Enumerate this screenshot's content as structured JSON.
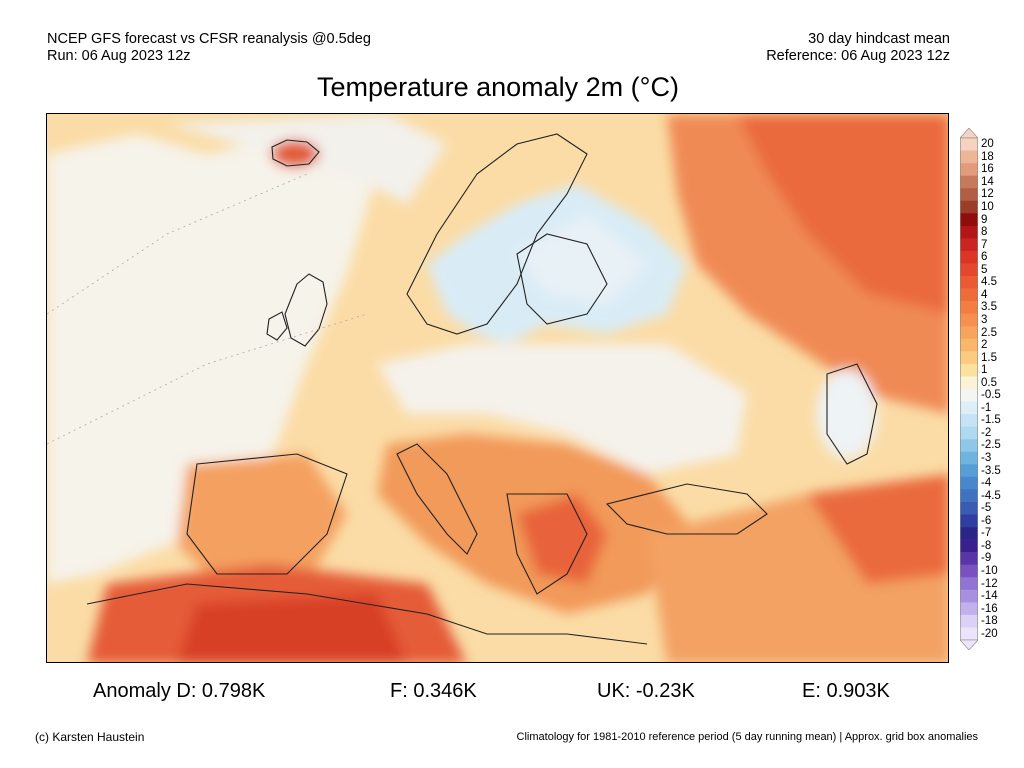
{
  "header": {
    "left_line1": "NCEP GFS forecast vs CFSR reanalysis @0.5deg",
    "left_line2": "Run: 06 Aug 2023 12z",
    "right_line1": "30 day hindcast mean",
    "right_line2": "Reference: 06 Aug 2023 12z"
  },
  "title": "Temperature anomaly 2m (°C)",
  "colorbar": {
    "labels": [
      "20",
      "18",
      "16",
      "14",
      "12",
      "10",
      "9",
      "8",
      "7",
      "6",
      "5",
      "4.5",
      "4",
      "3.5",
      "3",
      "2.5",
      "2",
      "1.5",
      "1",
      "0.5",
      "-0.5",
      "-1",
      "-1.5",
      "-2",
      "-2.5",
      "-3",
      "-3.5",
      "-4",
      "-4.5",
      "-5",
      "-6",
      "-7",
      "-8",
      "-9",
      "-10",
      "-12",
      "-14",
      "-16",
      "-18",
      "-20"
    ],
    "colors": [
      "#f6d2c0",
      "#edb697",
      "#e39c7b",
      "#c67a5b",
      "#b25e44",
      "#9c3d28",
      "#8f0d0d",
      "#b41616",
      "#cc2323",
      "#dc3426",
      "#e3472e",
      "#ea5a33",
      "#ef6c3a",
      "#f27e44",
      "#f5904e",
      "#f7a45c",
      "#f9b76c",
      "#fbcb80",
      "#fbe19e",
      "#fbf3d8",
      "#f4f4f4",
      "#dceefa",
      "#c6e3f5",
      "#addaf0",
      "#8ec8e8",
      "#6fb3df",
      "#569ed5",
      "#4787cb",
      "#3f73c1",
      "#3a5bb2",
      "#2f3ea0",
      "#2a2688",
      "#3a1f8f",
      "#5a35a8",
      "#7a52c0",
      "#9273d3",
      "#a98fe0",
      "#c2b0ec",
      "#dcd0f6",
      "#ebe4fb"
    ]
  },
  "stats": {
    "anomaly_d": "Anomaly D: 0.798K",
    "f": "F: 0.346K",
    "uk": "UK: -0.23K",
    "e": "E: 0.903K"
  },
  "footer": {
    "credit": "(c) Karsten Haustein",
    "note": "Climatology for 1981-2010 reference period (5 day running mean) | Approx. grid box anomalies"
  }
}
